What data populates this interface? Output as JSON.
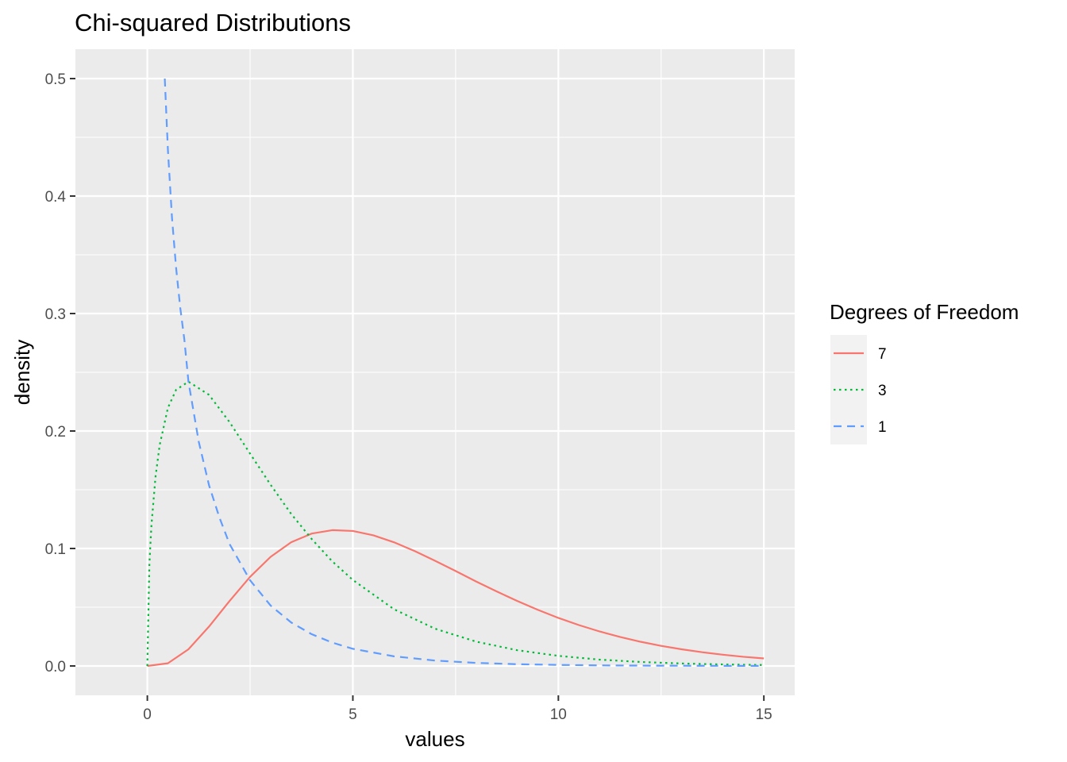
{
  "chart_data": {
    "type": "line",
    "title": "Chi-squared Distributions",
    "xlabel": "values",
    "ylabel": "density",
    "xlim": [
      -1.75,
      15.75
    ],
    "ylim": [
      -0.025,
      0.525
    ],
    "x_ticks": [
      0,
      5,
      10,
      15
    ],
    "x_tick_labels": [
      "0",
      "5",
      "10",
      "15"
    ],
    "y_ticks": [
      0.0,
      0.1,
      0.2,
      0.3,
      0.4,
      0.5
    ],
    "y_tick_labels": [
      "0.0",
      "0.1",
      "0.2",
      "0.3",
      "0.4",
      "0.5"
    ],
    "grid": true,
    "legend": {
      "title": "Degrees of Freedom",
      "placement": "right",
      "items": [
        "7",
        "3",
        "1"
      ]
    },
    "series": [
      {
        "name": "7",
        "color": "#F8766D",
        "linetype": "solid",
        "x": [
          0,
          0.5,
          1,
          1.5,
          2,
          2.5,
          3,
          3.5,
          4,
          4.5,
          5,
          5.5,
          6,
          6.5,
          7,
          7.5,
          8,
          8.5,
          9,
          9.5,
          10,
          10.5,
          11,
          11.5,
          12,
          12.5,
          13,
          13.5,
          14,
          14.5,
          15
        ],
        "values": [
          0.0,
          0.0023,
          0.0142,
          0.0335,
          0.0553,
          0.0759,
          0.0929,
          0.1053,
          0.1127,
          0.1156,
          0.1149,
          0.1112,
          0.1053,
          0.0979,
          0.0895,
          0.0808,
          0.0719,
          0.0634,
          0.0553,
          0.0478,
          0.0409,
          0.0348,
          0.0294,
          0.0247,
          0.0206,
          0.0171,
          0.0142,
          0.0117,
          0.0096,
          0.0078,
          0.0064
        ]
      },
      {
        "name": "3",
        "color": "#00BA38",
        "linetype": "dotted",
        "x": [
          0,
          0.05,
          0.1,
          0.2,
          0.3,
          0.5,
          0.7,
          1,
          1.5,
          2,
          2.5,
          3,
          3.5,
          4,
          4.5,
          5,
          6,
          7,
          8,
          9,
          10,
          11,
          12,
          13,
          14,
          15
        ],
        "values": [
          0.0,
          0.0871,
          0.12,
          0.1614,
          0.188,
          0.2197,
          0.2351,
          0.242,
          0.2308,
          0.2076,
          0.1807,
          0.1542,
          0.1294,
          0.108,
          0.089,
          0.0732,
          0.0483,
          0.0317,
          0.0207,
          0.0134,
          0.0086,
          0.0054,
          0.0034,
          0.0021,
          0.0013,
          0.0008
        ]
      },
      {
        "name": "1",
        "color": "#619CFF",
        "linetype": "dashed",
        "x": [
          0.424,
          0.5,
          0.6,
          0.7,
          0.8,
          0.9,
          1,
          1.25,
          1.5,
          1.75,
          2,
          2.5,
          3,
          3.5,
          4,
          4.5,
          5,
          6,
          7,
          8,
          9,
          10,
          11,
          12,
          13,
          14,
          15
        ],
        "values": [
          0.5,
          0.4394,
          0.3813,
          0.3387,
          0.305,
          0.278,
          0.242,
          0.191,
          0.1539,
          0.1267,
          0.1038,
          0.0729,
          0.0514,
          0.037,
          0.027,
          0.0199,
          0.0146,
          0.0082,
          0.0046,
          0.0026,
          0.0015,
          0.0009,
          0.0005,
          0.0003,
          0.0002,
          0.0001,
          0.0001
        ]
      }
    ]
  }
}
